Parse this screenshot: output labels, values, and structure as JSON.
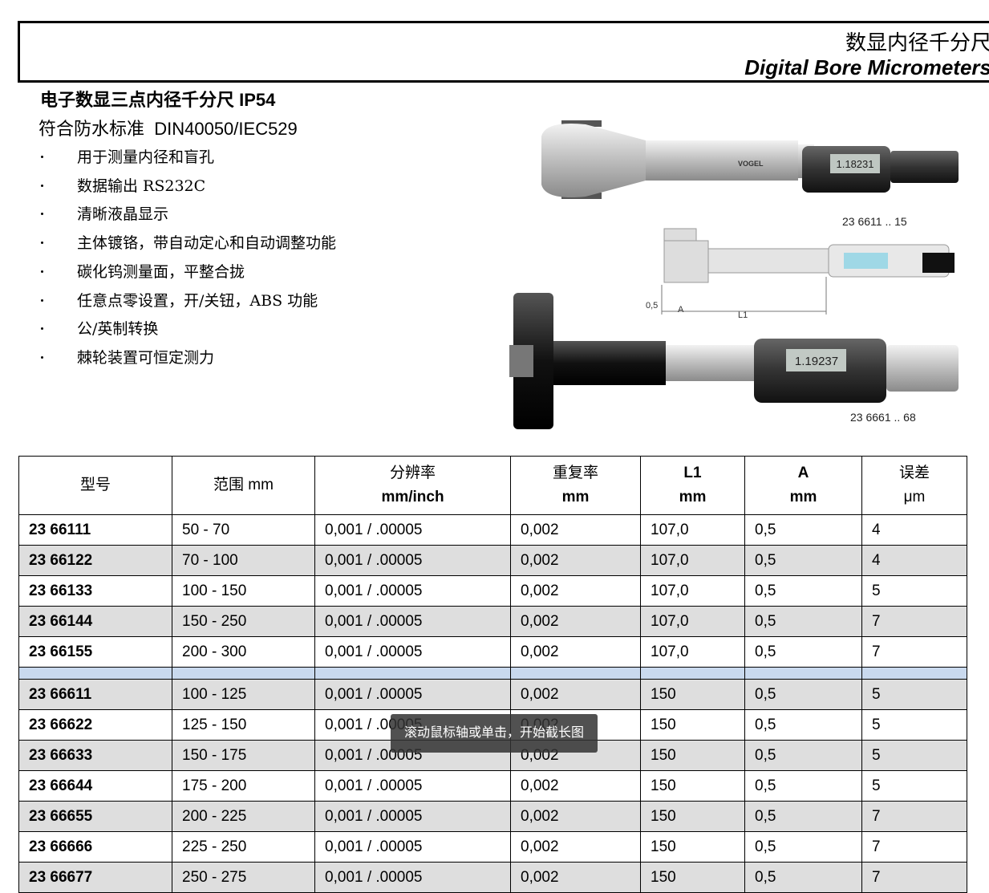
{
  "header": {
    "title_cn": "数显内径千分尺",
    "title_en": "Digital Bore Micrometers"
  },
  "intro": {
    "heading": "电子数显三点内径千分尺",
    "heading_code": "IP54",
    "subheading": "符合防水标准  DIN40050/IEC529",
    "bullets": [
      "用于测量内径和盲孔",
      "数据输出 RS232C",
      "清晰液晶显示",
      "主体镀铬，带自动定心和自动调整功能",
      "碳化钨测量面，平整合拢",
      "任意点零设置，开/关钮，ABS 功能",
      "公/英制转换",
      "棘轮装置可恒定测力"
    ]
  },
  "images": {
    "label_1": "23 6611 .. 15",
    "label_2": "23 6661 .. 68",
    "dim_a_value": "0,5",
    "dim_a": "A",
    "dim_l1": "L1",
    "display_1": "1.18231",
    "display_2": "1.19237"
  },
  "table": {
    "headers": [
      [
        "型号"
      ],
      [
        "范围 mm"
      ],
      [
        "分辨率",
        "mm/inch"
      ],
      [
        "重复率",
        "mm"
      ],
      [
        "L1",
        "mm"
      ],
      [
        "A",
        "mm"
      ],
      [
        "误差",
        "μm"
      ]
    ],
    "groups": [
      [
        [
          "23 66111",
          "50 - 70",
          "0,001 / .00005",
          "0,002",
          "107,0",
          "0,5",
          "4"
        ],
        [
          "23 66122",
          "70 - 100",
          "0,001 / .00005",
          "0,002",
          "107,0",
          "0,5",
          "4"
        ],
        [
          "23 66133",
          "100 - 150",
          "0,001 / .00005",
          "0,002",
          "107,0",
          "0,5",
          "5"
        ],
        [
          "23 66144",
          "150 - 250",
          "0,001 / .00005",
          "0,002",
          "107,0",
          "0,5",
          "7"
        ],
        [
          "23 66155",
          "200 - 300",
          "0,001 / .00005",
          "0,002",
          "107,0",
          "0,5",
          "7"
        ]
      ],
      [
        [
          "23 66611",
          "100 - 125",
          "0,001 / .00005",
          "0,002",
          "150",
          "0,5",
          "5"
        ],
        [
          "23 66622",
          "125 - 150",
          "0,001 / .00005",
          "0,002",
          "150",
          "0,5",
          "5"
        ],
        [
          "23 66633",
          "150 - 175",
          "0,001 / .00005",
          "0,002",
          "150",
          "0,5",
          "5"
        ],
        [
          "23 66644",
          "175 - 200",
          "0,001 / .00005",
          "0,002",
          "150",
          "0,5",
          "5"
        ],
        [
          "23 66655",
          "200 - 225",
          "0,001 / .00005",
          "0,002",
          "150",
          "0,5",
          "7"
        ],
        [
          "23 66666",
          "225 - 250",
          "0,001 / .00005",
          "0,002",
          "150",
          "0,5",
          "7"
        ],
        [
          "23 66677",
          "250 - 275",
          "0,001 / .00005",
          "0,002",
          "150",
          "0,5",
          "7"
        ]
      ]
    ]
  },
  "toast": "滚动鼠标轴或单击，开始截长图"
}
